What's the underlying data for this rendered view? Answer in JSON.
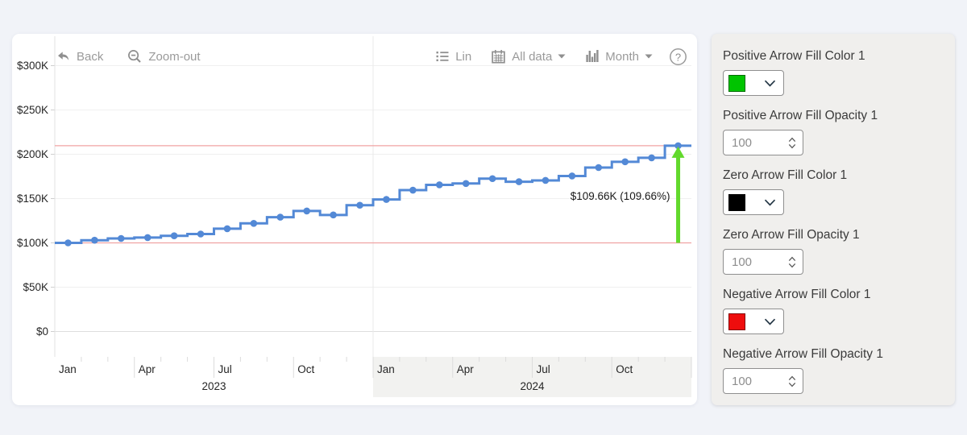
{
  "page": {
    "background": "#f1f3f8"
  },
  "toolbar": {
    "back": "Back",
    "zoom_out": "Zoom-out",
    "lin": "Lin",
    "all_data": "All data",
    "month": "Month",
    "help": "?"
  },
  "chart_data": {
    "type": "line",
    "subtype": "step-line-with-change-arrow",
    "title": "",
    "months": [
      "Jan 2023",
      "Feb 2023",
      "Mar 2023",
      "Apr 2023",
      "May 2023",
      "Jun 2023",
      "Jul 2023",
      "Aug 2023",
      "Sep 2023",
      "Oct 2023",
      "Nov 2023",
      "Dec 2023",
      "Jan 2024",
      "Feb 2024",
      "Mar 2024",
      "Apr 2024",
      "May 2024",
      "Jun 2024",
      "Jul 2024",
      "Aug 2024",
      "Sep 2024",
      "Oct 2024",
      "Nov 2024",
      "Dec 2024"
    ],
    "values": [
      100,
      103,
      105,
      106,
      108,
      110,
      116,
      122,
      129,
      136,
      131.5,
      142.5,
      149,
      159.5,
      165.5,
      167,
      172.5,
      169,
      170.5,
      175.5,
      185,
      191.5,
      196,
      209.66
    ],
    "unit": "K (USD thousands)",
    "ylim": [
      0,
      320
    ],
    "y_ticks": [
      [
        0,
        "$0"
      ],
      [
        50,
        "$50K"
      ],
      [
        100,
        "$100K"
      ],
      [
        150,
        "$150K"
      ],
      [
        200,
        "$200K"
      ],
      [
        250,
        "$250K"
      ],
      [
        300,
        "$300K"
      ]
    ],
    "x_ticks": [
      [
        0,
        "Jan"
      ],
      [
        3,
        "Apr"
      ],
      [
        6,
        "Jul"
      ],
      [
        9,
        "Oct"
      ],
      [
        12,
        "Jan"
      ],
      [
        15,
        "Apr"
      ],
      [
        18,
        "Jul"
      ],
      [
        21,
        "Oct"
      ]
    ],
    "year_labels": [
      [
        0,
        12,
        "2023"
      ],
      [
        12,
        24,
        "2024"
      ]
    ],
    "baseline_value": 100,
    "final_value": 209.66,
    "annotation": "$109.66K (109.66%)",
    "grid": true,
    "legend": "none",
    "line_color": "#5389d6",
    "red_line_color": "#f0a3a3",
    "arrow_color": "#62d92c"
  },
  "settings": {
    "controls": [
      {
        "type": "color",
        "label": "Positive Arrow Fill Color 1",
        "swatch": "#00c400"
      },
      {
        "type": "number",
        "label": "Positive Arrow Fill Opacity 1",
        "value": "100"
      },
      {
        "type": "color",
        "label": "Zero Arrow Fill Color 1",
        "swatch": "#000000"
      },
      {
        "type": "number",
        "label": "Zero Arrow Fill Opacity 1",
        "value": "100"
      },
      {
        "type": "color",
        "label": "Negative Arrow Fill Color 1",
        "swatch": "#ee0d0d"
      },
      {
        "type": "number",
        "label": "Negative Arrow Fill Opacity 1",
        "value": "100"
      }
    ]
  }
}
